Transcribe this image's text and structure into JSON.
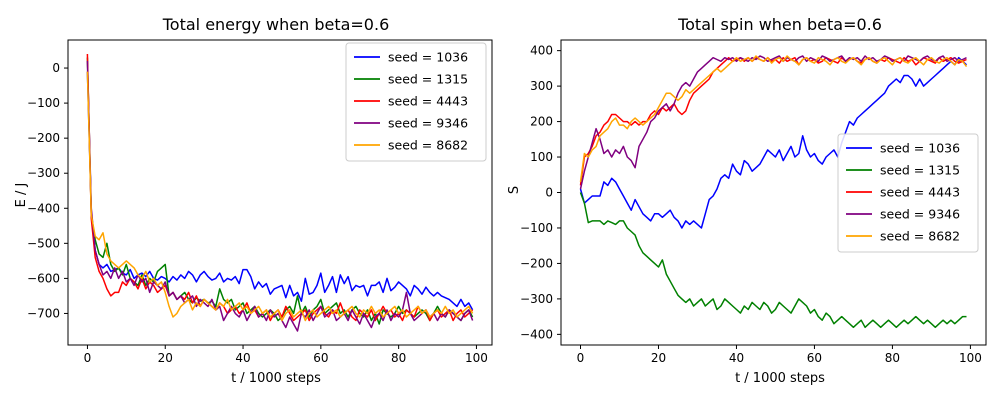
{
  "chart_data": [
    {
      "type": "line",
      "title": "Total energy when beta=0.6",
      "xlabel": "t / 1000 steps",
      "ylabel": "E / J",
      "xlim": [
        -5,
        104
      ],
      "ylim": [
        -790,
        80
      ],
      "xticks": [
        0,
        20,
        40,
        60,
        80,
        100
      ],
      "yticks": [
        0,
        -100,
        -200,
        -300,
        -400,
        -500,
        -600,
        -700
      ],
      "legend_position": "top-right",
      "grid": false,
      "series": [
        {
          "name": "seed = 1036",
          "color": "#0000ff",
          "values": [
            -10,
            -410,
            -520,
            -560,
            -570,
            -560,
            -580,
            -575,
            -570,
            -585,
            -590,
            -575,
            -600,
            -590,
            -585,
            -595,
            -580,
            -600,
            -605,
            -595,
            -600,
            -610,
            -595,
            -605,
            -590,
            -600,
            -580,
            -590,
            -610,
            -590,
            -580,
            -595,
            -605,
            -600,
            -585,
            -610,
            -600,
            -605,
            -595,
            -615,
            -575,
            -575,
            -595,
            -630,
            -610,
            -625,
            -615,
            -645,
            -630,
            -625,
            -620,
            -655,
            -620,
            -650,
            -640,
            -665,
            -600,
            -645,
            -640,
            -620,
            -585,
            -640,
            -620,
            -595,
            -640,
            -590,
            -615,
            -595,
            -635,
            -620,
            -625,
            -620,
            -650,
            -620,
            -620,
            -610,
            -640,
            -600,
            -635,
            -625,
            -610,
            -620,
            -630,
            -650,
            -620,
            -630,
            -645,
            -625,
            -640,
            -650,
            -640,
            -650,
            -655,
            -660,
            -670,
            -680,
            -660,
            -680,
            -670,
            -690
          ]
        },
        {
          "name": "seed = 1315",
          "color": "#008000",
          "values": [
            30,
            -420,
            -490,
            -530,
            -540,
            -500,
            -560,
            -580,
            -570,
            -590,
            -560,
            -600,
            -610,
            -620,
            -590,
            -620,
            -600,
            -610,
            -580,
            -570,
            -560,
            -650,
            -640,
            -660,
            -650,
            -640,
            -660,
            -670,
            -655,
            -665,
            -660,
            -670,
            -665,
            -680,
            -630,
            -660,
            -670,
            -660,
            -690,
            -680,
            -670,
            -700,
            -690,
            -680,
            -700,
            -710,
            -700,
            -690,
            -700,
            -720,
            -710,
            -690,
            -680,
            -700,
            -650,
            -700,
            -680,
            -710,
            -690,
            -680,
            -660,
            -700,
            -690,
            -680,
            -670,
            -700,
            -690,
            -710,
            -690,
            -680,
            -700,
            -710,
            -690,
            -720,
            -700,
            -730,
            -690,
            -700,
            -710,
            -700,
            -680,
            -700,
            -690,
            -700,
            -710,
            -700,
            -690,
            -700,
            -720,
            -700,
            -680,
            -700,
            -710,
            -690,
            -700,
            -710,
            -720,
            -700,
            -690,
            -710
          ]
        },
        {
          "name": "seed = 4443",
          "color": "#ff0000",
          "values": [
            40,
            -430,
            -540,
            -580,
            -600,
            -630,
            -650,
            -640,
            -640,
            -610,
            -620,
            -600,
            -610,
            -630,
            -600,
            -630,
            -610,
            -620,
            -640,
            -630,
            -620,
            -650,
            -640,
            -660,
            -650,
            -660,
            -640,
            -670,
            -650,
            -680,
            -660,
            -670,
            -680,
            -690,
            -670,
            -680,
            -700,
            -690,
            -680,
            -700,
            -690,
            -670,
            -700,
            -690,
            -710,
            -700,
            -690,
            -720,
            -700,
            -690,
            -710,
            -680,
            -700,
            -720,
            -710,
            -700,
            -690,
            -720,
            -700,
            -690,
            -680,
            -700,
            -710,
            -690,
            -700,
            -670,
            -700,
            -690,
            -710,
            -720,
            -690,
            -700,
            -710,
            -690,
            -720,
            -700,
            -680,
            -700,
            -690,
            -710,
            -700,
            -720,
            -690,
            -700,
            -710,
            -680,
            -700,
            -690,
            -720,
            -700,
            -690,
            -710,
            -700,
            -690,
            -720,
            -700,
            -690,
            -710,
            -700,
            -690
          ]
        },
        {
          "name": "seed = 9346",
          "color": "#800080",
          "values": [
            20,
            -400,
            -520,
            -560,
            -590,
            -580,
            -600,
            -570,
            -600,
            -580,
            -610,
            -600,
            -620,
            -590,
            -610,
            -600,
            -640,
            -610,
            -620,
            -630,
            -610,
            -650,
            -640,
            -660,
            -650,
            -670,
            -660,
            -650,
            -680,
            -660,
            -670,
            -680,
            -660,
            -690,
            -680,
            -720,
            -700,
            -680,
            -700,
            -710,
            -690,
            -720,
            -700,
            -680,
            -710,
            -700,
            -720,
            -690,
            -710,
            -700,
            -720,
            -740,
            -710,
            -730,
            -750,
            -700,
            -710,
            -690,
            -720,
            -700,
            -680,
            -710,
            -700,
            -690,
            -720,
            -710,
            -700,
            -720,
            -690,
            -710,
            -730,
            -700,
            -720,
            -740,
            -710,
            -700,
            -720,
            -690,
            -720,
            -700,
            -710,
            -690,
            -640,
            -700,
            -720,
            -710,
            -700,
            -690,
            -710,
            -700,
            -720,
            -700,
            -710,
            -690,
            -700,
            -710,
            -720,
            -700,
            -690,
            -720
          ]
        },
        {
          "name": "seed = 8682",
          "color": "#ffa500",
          "values": [
            -10,
            -420,
            -480,
            -490,
            -470,
            -530,
            -550,
            -560,
            -570,
            -560,
            -550,
            -560,
            -570,
            -590,
            -600,
            -580,
            -610,
            -600,
            -620,
            -610,
            -640,
            -680,
            -710,
            -700,
            -680,
            -670,
            -660,
            -690,
            -670,
            -680,
            -660,
            -670,
            -680,
            -690,
            -670,
            -680,
            -660,
            -690,
            -680,
            -670,
            -690,
            -680,
            -700,
            -690,
            -680,
            -700,
            -690,
            -710,
            -700,
            -690,
            -720,
            -700,
            -690,
            -710,
            -700,
            -690,
            -720,
            -700,
            -690,
            -710,
            -700,
            -690,
            -680,
            -700,
            -690,
            -710,
            -700,
            -690,
            -680,
            -700,
            -710,
            -690,
            -700,
            -680,
            -700,
            -690,
            -710,
            -700,
            -690,
            -680,
            -700,
            -690,
            -710,
            -700,
            -690,
            -680,
            -700,
            -690,
            -710,
            -700,
            -690,
            -700,
            -680,
            -700,
            -690,
            -710,
            -700,
            -690,
            -680,
            -700
          ]
        }
      ]
    },
    {
      "type": "line",
      "title": "Total spin when beta=0.6",
      "xlabel": "t / 1000 steps",
      "ylabel": "S",
      "xlim": [
        -5,
        104
      ],
      "ylim": [
        -430,
        430
      ],
      "xticks": [
        0,
        20,
        40,
        60,
        80,
        100
      ],
      "yticks": [
        400,
        300,
        200,
        100,
        0,
        -100,
        -200,
        -300,
        -400
      ],
      "legend_position": "center-right",
      "grid": false,
      "series": [
        {
          "name": "seed = 1036",
          "color": "#0000ff",
          "values": [
            10,
            -30,
            -20,
            -10,
            -10,
            -10,
            30,
            20,
            40,
            30,
            10,
            -10,
            -30,
            -50,
            -20,
            -40,
            -60,
            -70,
            -80,
            -60,
            -60,
            -70,
            -60,
            -50,
            -70,
            -80,
            -100,
            -80,
            -90,
            -80,
            -90,
            -100,
            -60,
            -20,
            -10,
            10,
            40,
            50,
            40,
            80,
            60,
            50,
            90,
            80,
            60,
            70,
            80,
            100,
            120,
            110,
            100,
            120,
            90,
            110,
            130,
            100,
            110,
            160,
            120,
            100,
            110,
            90,
            80,
            100,
            110,
            120,
            100,
            140,
            170,
            200,
            190,
            210,
            220,
            230,
            240,
            250,
            260,
            270,
            280,
            300,
            310,
            320,
            310,
            330,
            330,
            320,
            300,
            320,
            300,
            310,
            320,
            330,
            340,
            350,
            360,
            370,
            360,
            380,
            370,
            360
          ]
        },
        {
          "name": "seed = 1315",
          "color": "#008000",
          "values": [
            0,
            -30,
            -85,
            -80,
            -80,
            -80,
            -90,
            -80,
            -85,
            -90,
            -80,
            -80,
            -100,
            -110,
            -120,
            -150,
            -170,
            -180,
            -190,
            -200,
            -210,
            -190,
            -230,
            -250,
            -270,
            -290,
            -300,
            -310,
            -300,
            -320,
            -310,
            -300,
            -320,
            -310,
            -300,
            -330,
            -320,
            -300,
            -310,
            -320,
            -330,
            -340,
            -320,
            -330,
            -310,
            -320,
            -330,
            -310,
            -320,
            -340,
            -330,
            -310,
            -320,
            -330,
            -340,
            -320,
            -300,
            -310,
            -320,
            -340,
            -330,
            -350,
            -360,
            -340,
            -350,
            -370,
            -360,
            -350,
            -360,
            -370,
            -380,
            -370,
            -360,
            -380,
            -370,
            -360,
            -370,
            -380,
            -370,
            -360,
            -370,
            -380,
            -370,
            -360,
            -370,
            -360,
            -350,
            -360,
            -370,
            -360,
            -370,
            -380,
            -370,
            -360,
            -370,
            -360,
            -370,
            -360,
            -350,
            -350
          ]
        },
        {
          "name": "seed = 4443",
          "color": "#ff0000",
          "values": [
            20,
            100,
            110,
            130,
            160,
            170,
            190,
            200,
            220,
            220,
            210,
            200,
            200,
            190,
            200,
            190,
            200,
            200,
            220,
            230,
            220,
            240,
            230,
            240,
            250,
            230,
            220,
            230,
            260,
            280,
            290,
            300,
            310,
            320,
            340,
            350,
            360,
            370,
            380,
            370,
            375,
            380,
            370,
            380,
            370,
            380,
            375,
            370,
            380,
            370,
            375,
            365,
            380,
            370,
            375,
            380,
            360,
            375,
            380,
            370,
            375,
            365,
            370,
            380,
            375,
            370,
            365,
            380,
            370,
            375,
            380,
            370,
            365,
            375,
            380,
            370,
            365,
            375,
            370,
            380,
            375,
            370,
            365,
            380,
            370,
            375,
            360,
            370,
            380,
            375,
            370,
            365,
            380,
            370,
            375,
            380,
            370,
            365,
            370,
            375
          ]
        },
        {
          "name": "seed = 9346",
          "color": "#800080",
          "values": [
            10,
            60,
            100,
            140,
            180,
            150,
            110,
            120,
            100,
            120,
            110,
            130,
            100,
            90,
            70,
            130,
            150,
            170,
            200,
            210,
            230,
            240,
            250,
            230,
            250,
            280,
            300,
            310,
            300,
            320,
            340,
            350,
            360,
            370,
            380,
            375,
            370,
            380,
            375,
            380,
            370,
            380,
            375,
            370,
            380,
            375,
            385,
            380,
            370,
            375,
            380,
            385,
            370,
            380,
            375,
            370,
            380,
            385,
            370,
            380,
            375,
            370,
            385,
            380,
            370,
            375,
            380,
            385,
            370,
            380,
            375,
            380,
            370,
            385,
            375,
            380,
            370,
            375,
            385,
            380,
            370,
            375,
            380,
            370,
            385,
            380,
            375,
            370,
            380,
            385,
            375,
            370,
            380,
            385,
            370,
            375,
            380,
            370,
            375,
            380
          ]
        },
        {
          "name": "seed = 8682",
          "color": "#ffa500",
          "values": [
            30,
            110,
            100,
            120,
            130,
            160,
            170,
            180,
            200,
            210,
            190,
            190,
            180,
            200,
            210,
            200,
            190,
            200,
            210,
            220,
            240,
            260,
            280,
            280,
            270,
            260,
            270,
            290,
            280,
            290,
            300,
            310,
            320,
            330,
            340,
            350,
            340,
            350,
            360,
            370,
            380,
            370,
            375,
            380,
            370,
            385,
            375,
            370,
            380,
            365,
            375,
            380,
            370,
            385,
            375,
            370,
            360,
            375,
            380,
            370,
            365,
            380,
            375,
            370,
            360,
            375,
            380,
            370,
            365,
            375,
            380,
            370,
            360,
            375,
            380,
            370,
            365,
            375,
            380,
            370,
            360,
            375,
            380,
            370,
            365,
            375,
            380,
            370,
            360,
            375,
            380,
            370,
            365,
            375,
            380,
            370,
            360,
            375,
            370,
            355
          ]
        }
      ]
    }
  ]
}
